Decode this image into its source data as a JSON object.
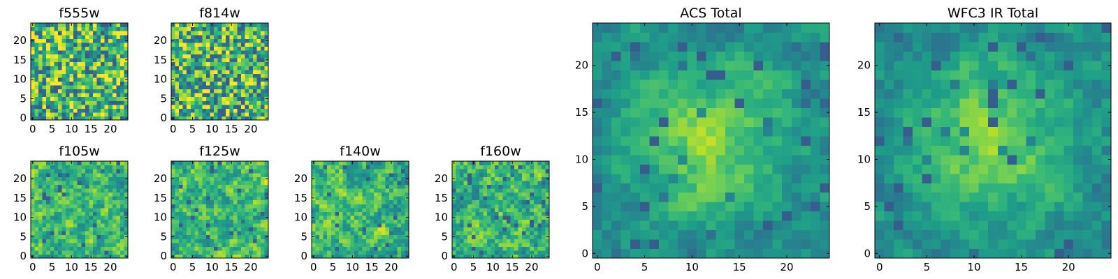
{
  "chart_data": [
    {
      "type": "heatmap",
      "title": "f555w",
      "xlim": [
        0,
        24
      ],
      "ylim": [
        0,
        24
      ],
      "xticks": [
        "0",
        "5",
        "10",
        "15",
        "20"
      ],
      "yticks": [
        "0",
        "5",
        "10",
        "15",
        "20"
      ],
      "colormap": "viridis",
      "texture": "fine",
      "seed": 11
    },
    {
      "type": "heatmap",
      "title": "f814w",
      "xlim": [
        0,
        24
      ],
      "ylim": [
        0,
        24
      ],
      "xticks": [
        "0",
        "5",
        "10",
        "15",
        "20"
      ],
      "yticks": [
        "0",
        "5",
        "10",
        "15",
        "20"
      ],
      "colormap": "viridis",
      "texture": "fine",
      "seed": 23
    },
    {
      "type": "heatmap",
      "title": "f105w",
      "xlim": [
        0,
        24
      ],
      "ylim": [
        0,
        24
      ],
      "xticks": [
        "0",
        "5",
        "10",
        "15",
        "20"
      ],
      "yticks": [
        "0",
        "5",
        "10",
        "15",
        "20"
      ],
      "colormap": "viridis",
      "texture": "smooth",
      "seed": 37
    },
    {
      "type": "heatmap",
      "title": "f125w",
      "xlim": [
        0,
        24
      ],
      "ylim": [
        0,
        24
      ],
      "xticks": [
        "0",
        "5",
        "10",
        "15",
        "20"
      ],
      "yticks": [
        "0",
        "5",
        "10",
        "15",
        "20"
      ],
      "colormap": "viridis",
      "texture": "smooth",
      "seed": 41
    },
    {
      "type": "heatmap",
      "title": "f140w",
      "xlim": [
        0,
        24
      ],
      "ylim": [
        0,
        24
      ],
      "xticks": [
        "0",
        "5",
        "10",
        "15",
        "20"
      ],
      "yticks": [
        "0",
        "5",
        "10",
        "15",
        "20"
      ],
      "colormap": "viridis",
      "texture": "smooth",
      "seed": 53
    },
    {
      "type": "heatmap",
      "title": "f160w",
      "xlim": [
        0,
        24
      ],
      "ylim": [
        0,
        24
      ],
      "xticks": [
        "0",
        "5",
        "10",
        "15",
        "20"
      ],
      "yticks": [
        "0",
        "5",
        "10",
        "15",
        "20"
      ],
      "colormap": "viridis",
      "texture": "smooth",
      "seed": 67
    },
    {
      "type": "heatmap",
      "title": "ACS Total",
      "xlim": [
        0,
        24
      ],
      "ylim": [
        0,
        24
      ],
      "xticks": [
        "0",
        "5",
        "10",
        "15",
        "20"
      ],
      "yticks": [
        "0",
        "5",
        "10",
        "15",
        "20"
      ],
      "colormap": "viridis",
      "texture": "blob",
      "seed": 71
    },
    {
      "type": "heatmap",
      "title": "WFC3 IR Total",
      "xlim": [
        0,
        24
      ],
      "ylim": [
        0,
        24
      ],
      "xticks": [
        "0",
        "5",
        "10",
        "15",
        "20"
      ],
      "yticks": [
        "0",
        "5",
        "10",
        "15",
        "20"
      ],
      "colormap": "viridis",
      "texture": "blob",
      "seed": 89
    }
  ]
}
